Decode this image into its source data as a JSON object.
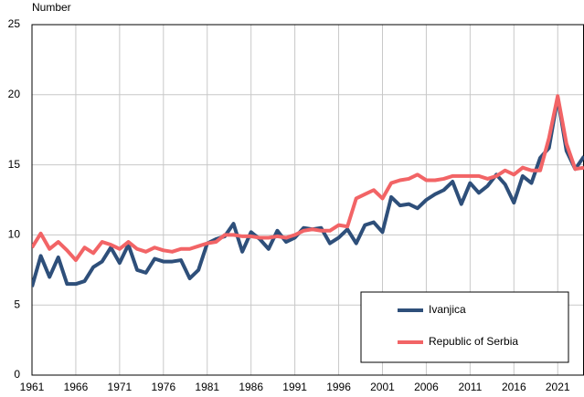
{
  "chart_data": {
    "type": "line",
    "y_label": "Number",
    "x": [
      1961,
      1962,
      1963,
      1964,
      1965,
      1966,
      1967,
      1968,
      1969,
      1970,
      1971,
      1972,
      1973,
      1974,
      1975,
      1976,
      1977,
      1978,
      1979,
      1980,
      1981,
      1982,
      1983,
      1984,
      1985,
      1986,
      1987,
      1988,
      1989,
      1990,
      1991,
      1992,
      1993,
      1994,
      1995,
      1996,
      1997,
      1998,
      1999,
      2000,
      2001,
      2002,
      2003,
      2004,
      2005,
      2006,
      2007,
      2008,
      2009,
      2010,
      2011,
      2012,
      2013,
      2014,
      2015,
      2016,
      2017,
      2018,
      2019,
      2020,
      2021,
      2022,
      2023,
      2024
    ],
    "series": [
      {
        "name": "Ivanjica",
        "color": "#2e4f7a",
        "values": [
          6.3,
          8.5,
          7.0,
          8.4,
          6.5,
          6.5,
          6.7,
          7.7,
          8.1,
          9.1,
          8.0,
          9.3,
          7.5,
          7.3,
          8.3,
          8.1,
          8.1,
          8.2,
          6.9,
          7.5,
          9.4,
          9.7,
          9.9,
          10.8,
          8.8,
          10.2,
          9.7,
          9.0,
          10.3,
          9.5,
          9.8,
          10.5,
          10.4,
          10.5,
          9.4,
          9.8,
          10.4,
          9.4,
          10.7,
          10.9,
          10.2,
          12.7,
          12.1,
          12.2,
          11.9,
          12.5,
          12.9,
          13.2,
          13.8,
          12.2,
          13.7,
          13.0,
          13.5,
          14.3,
          13.6,
          12.3,
          14.2,
          13.7,
          15.5,
          16.2,
          19.8,
          16.0,
          14.7,
          15.6
        ]
      },
      {
        "name": "Republic of Serbia",
        "color": "#f26466",
        "values": [
          9.1,
          10.1,
          9.0,
          9.5,
          8.9,
          8.2,
          9.1,
          8.7,
          9.5,
          9.3,
          9.0,
          9.5,
          9.0,
          8.8,
          9.1,
          8.9,
          8.8,
          9.0,
          9.0,
          9.2,
          9.4,
          9.5,
          10.0,
          10.0,
          9.9,
          9.9,
          9.8,
          9.8,
          9.9,
          9.8,
          10.0,
          10.3,
          10.4,
          10.3,
          10.3,
          10.7,
          10.6,
          12.6,
          12.9,
          13.2,
          12.6,
          13.7,
          13.9,
          14.0,
          14.3,
          13.9,
          13.9,
          14.0,
          14.2,
          14.2,
          14.2,
          14.2,
          14.0,
          14.2,
          14.6,
          14.3,
          14.8,
          14.6,
          14.6,
          16.9,
          19.9,
          16.5,
          14.7,
          14.8
        ]
      }
    ],
    "xlim": [
      1961,
      2024
    ],
    "xticks": [
      1961,
      1966,
      1971,
      1976,
      1981,
      1986,
      1991,
      1996,
      2001,
      2006,
      2011,
      2016,
      2021
    ],
    "ylim": [
      0,
      25
    ],
    "yticks": [
      0,
      5,
      10,
      15,
      20,
      25
    ],
    "grid": true,
    "legend": "lower right"
  }
}
